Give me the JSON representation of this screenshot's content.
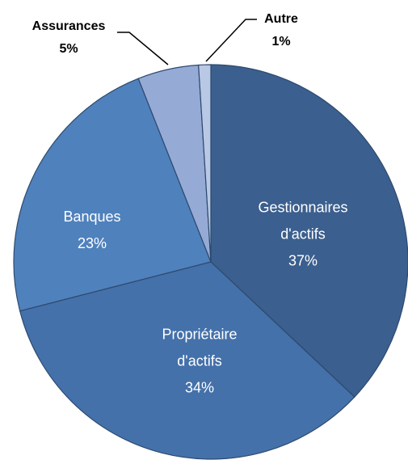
{
  "chart_data": {
    "type": "pie",
    "categories": [
      "Gestionnaires d'actifs",
      "Propriétaire d'actifs",
      "Banques",
      "Assurances",
      "Autre"
    ],
    "values": [
      37,
      34,
      23,
      5,
      1
    ],
    "value_labels": [
      "37%",
      "34%",
      "23%",
      "5%",
      "1%"
    ],
    "colors": [
      "#3b5f8e",
      "#4471aa",
      "#4f81bd",
      "#95abd6",
      "#b9c8e4"
    ]
  }
}
